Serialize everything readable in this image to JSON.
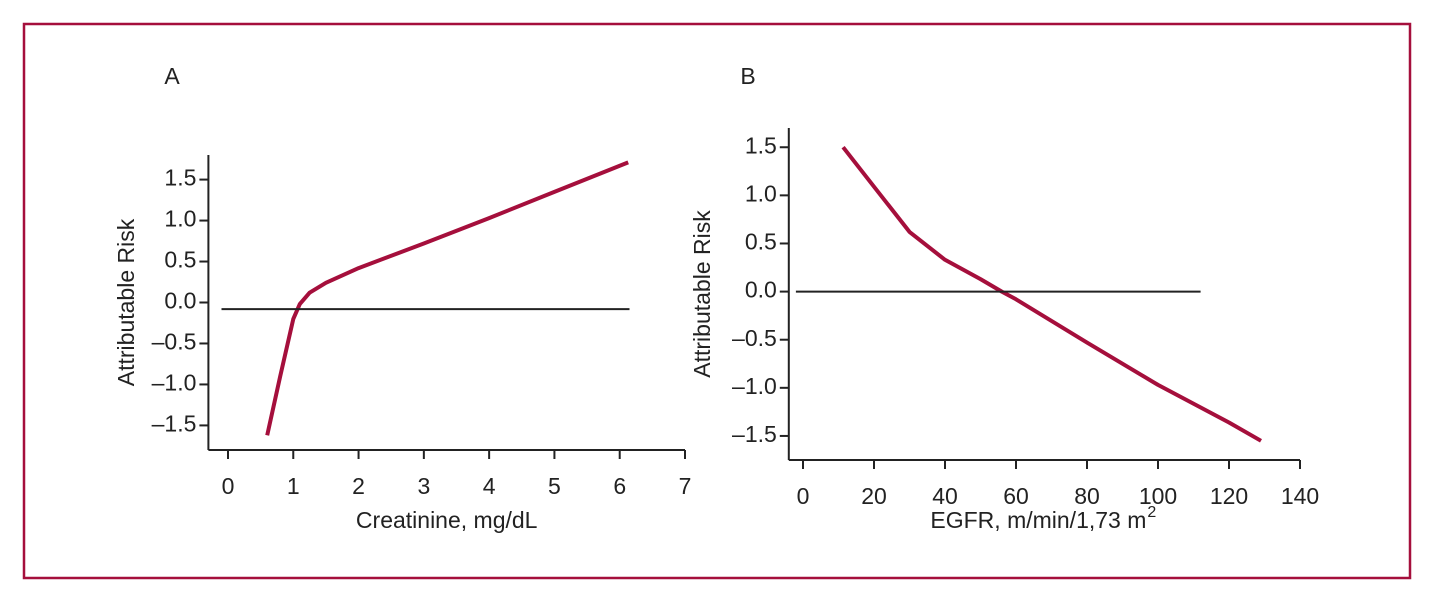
{
  "chart_data": [
    {
      "type": "line",
      "panel_label": "A",
      "xlabel": "Creatinine, mg/dL",
      "ylabel": "Attributable Risk",
      "xlim": [
        -0.3,
        7
      ],
      "ylim": [
        -1.8,
        1.8
      ],
      "xticks": [
        0,
        1,
        2,
        3,
        4,
        5,
        6,
        7
      ],
      "yticks": [
        1.5,
        {
          "value": 1.0,
          "label": "1.0"
        },
        0.5,
        {
          "value": 0.0,
          "label": "0.0"
        },
        {
          "value": -0.5,
          "label": "–0.5"
        },
        {
          "value": -1.0,
          "label": "–1.0"
        },
        {
          "value": -1.5,
          "label": "–1.5"
        }
      ],
      "series": [
        {
          "color": "#a50f3c",
          "x": [
            0.6,
            0.8,
            1.0,
            1.1,
            1.25,
            1.5,
            2,
            3,
            4,
            5,
            6.13
          ],
          "values": [
            -1.62,
            -0.9,
            -0.2,
            -0.02,
            0.12,
            0.24,
            0.42,
            0.72,
            1.03,
            1.35,
            1.71
          ]
        },
        {
          "color": "#222222",
          "x": [
            -0.1,
            6.15
          ],
          "values": [
            -0.08,
            -0.08
          ]
        }
      ]
    },
    {
      "type": "line",
      "panel_label": "B",
      "xlabel": "EGFR, m/min/1,73 m",
      "xlabel_superscript": "2",
      "ylabel": "Attributable Risk",
      "xlim": [
        -4,
        140
      ],
      "ylim": [
        -1.75,
        1.7
      ],
      "xticks": [
        0,
        20,
        40,
        60,
        80,
        100,
        120,
        140
      ],
      "yticks": [
        1.5,
        {
          "value": 1.0,
          "label": "1.0"
        },
        0.5,
        {
          "value": 0.0,
          "label": "0.0"
        },
        {
          "value": -0.5,
          "label": "–0.5"
        },
        {
          "value": -1.0,
          "label": "–1.0"
        },
        {
          "value": -1.5,
          "label": "–1.5"
        }
      ],
      "series": [
        {
          "color": "#a50f3c",
          "x": [
            11.3,
            20,
            30,
            40,
            50,
            56,
            60,
            80,
            100,
            120,
            129
          ],
          "values": [
            1.5,
            1.09,
            0.62,
            0.33,
            0.13,
            0,
            -0.08,
            -0.53,
            -0.97,
            -1.36,
            -1.55
          ]
        },
        {
          "color": "#222222",
          "x": [
            -2,
            112
          ],
          "values": [
            0,
            0
          ]
        }
      ]
    }
  ]
}
